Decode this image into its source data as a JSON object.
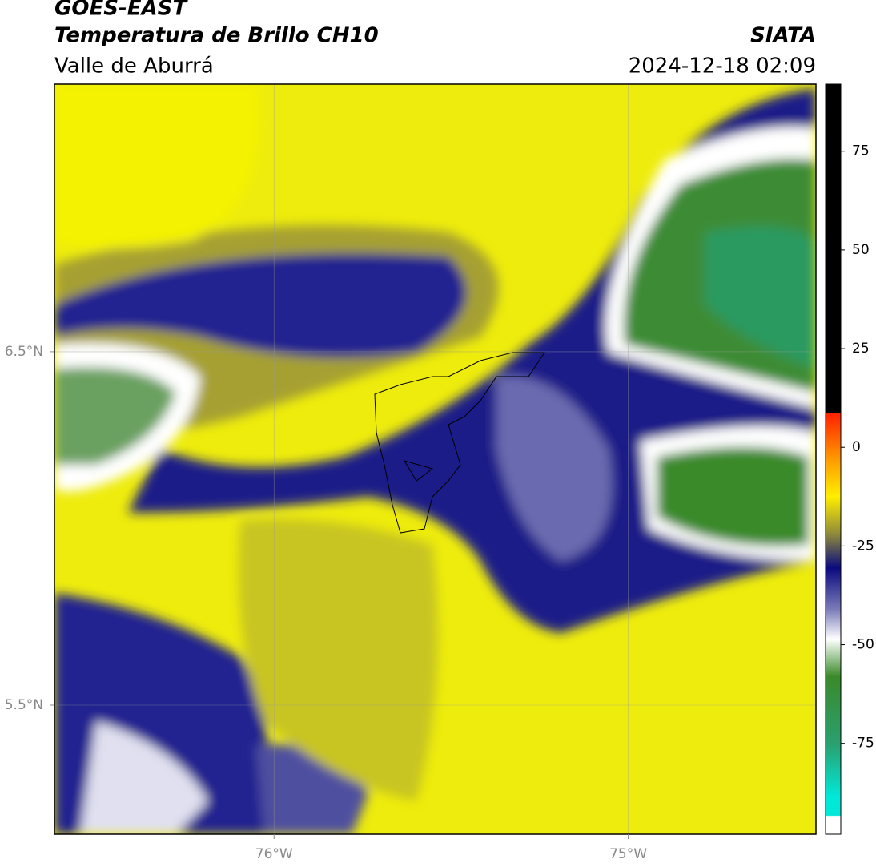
{
  "header": {
    "title": "GOES-EAST",
    "subtitle": "Temperatura de Brillo CH10",
    "region": "Valle de Aburrá",
    "source": "SIATA",
    "datetime": "2024-12-18 02:09"
  },
  "map": {
    "xlim": [
      -76.62,
      -74.47
    ],
    "ylim": [
      5.135,
      7.257
    ],
    "xticks": [
      {
        "value": -76,
        "label": "76°W"
      },
      {
        "value": -75,
        "label": "75°W"
      }
    ],
    "yticks": [
      {
        "value": 6.5,
        "label": "6.5°N"
      },
      {
        "value": 5.5,
        "label": "5.5°N"
      }
    ],
    "grid": true
  },
  "colorbar": {
    "lim": [
      -98,
      92
    ],
    "ticks": [
      75,
      50,
      25,
      0,
      -25,
      -50,
      -75
    ]
  }
}
